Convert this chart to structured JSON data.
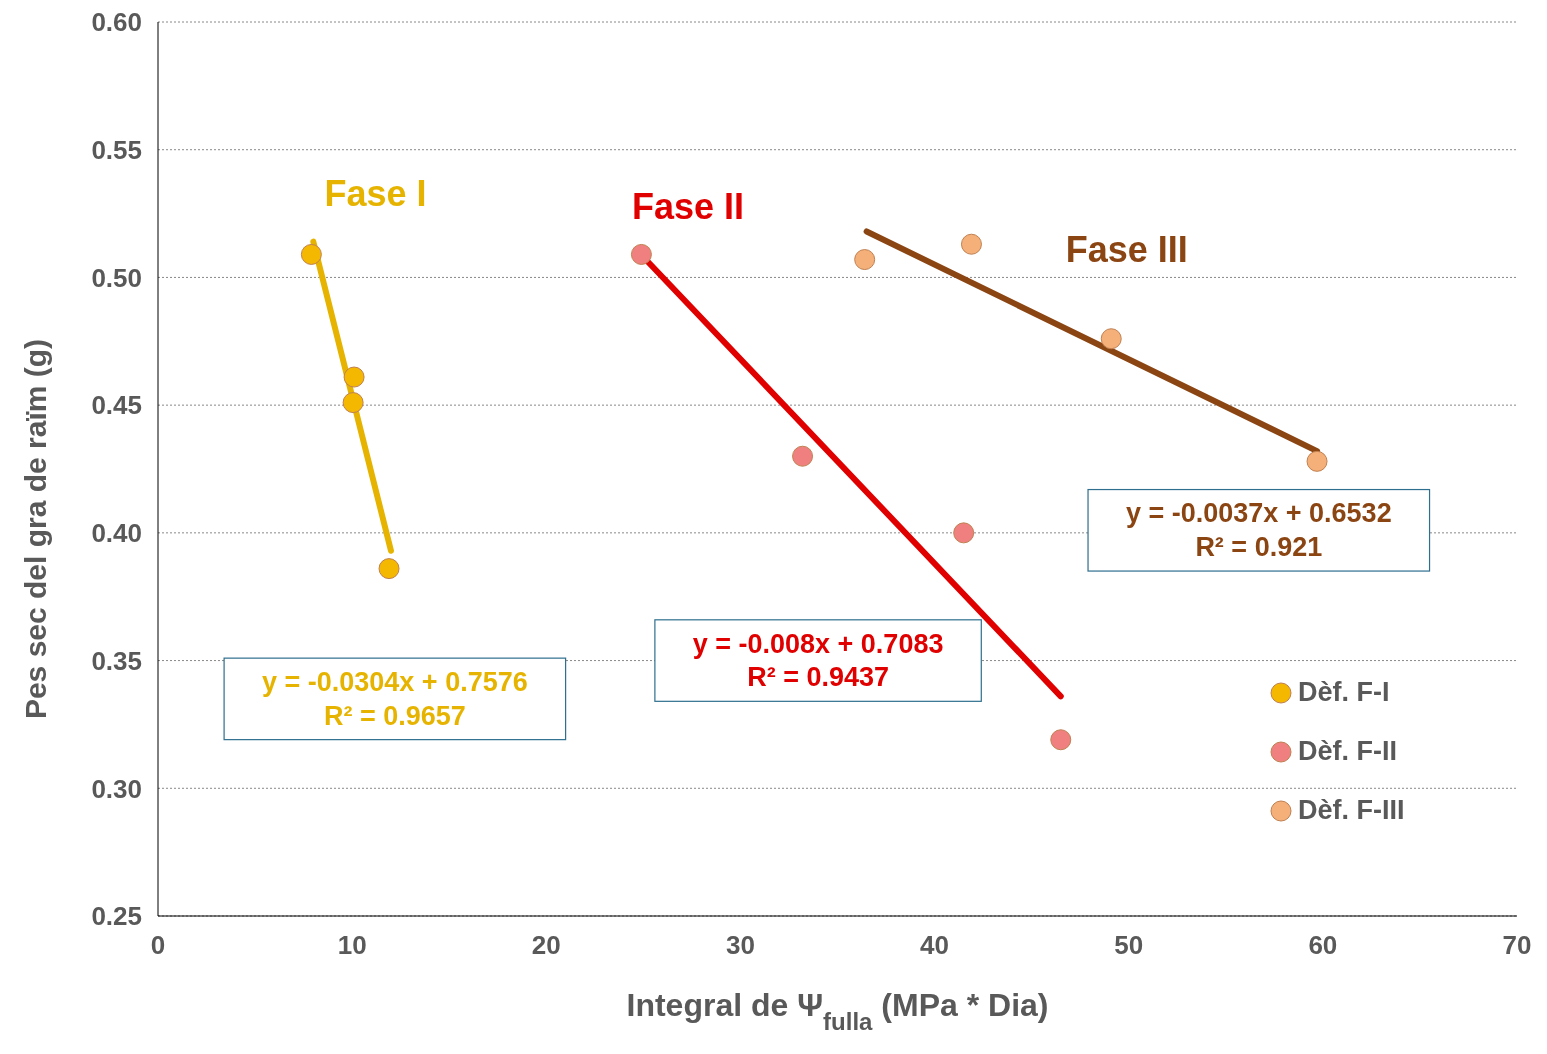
{
  "chart_data": {
    "type": "scatter",
    "xlabel": "Integral de Ψ$_{fulla}$ (MPa * Dia)",
    "ylabel": "Pes sec del gra de raïm (g)",
    "xlim": [
      0,
      70
    ],
    "xticks": [
      0,
      10,
      20,
      30,
      40,
      50,
      60,
      70
    ],
    "ylim": [
      0.25,
      0.6
    ],
    "yticks": [
      0.25,
      {
        "value": 0.3,
        "label": "0.30"
      },
      0.35,
      {
        "value": 0.4,
        "label": "0.40"
      },
      0.45,
      {
        "value": 0.5,
        "label": "0.50"
      },
      0.55,
      {
        "value": 0.6,
        "label": "0.60"
      }
    ],
    "grid": "y",
    "legend": "right",
    "series": [
      {
        "name": "Dèf. F-I",
        "color": "#f5b800",
        "marker": "circle",
        "x": [
          7.9,
          10.1,
          10.05,
          11.9
        ],
        "values": [
          0.509,
          0.461,
          0.451,
          0.386
        ]
      },
      {
        "name": "Dèf. F-II",
        "color": "#f08080",
        "marker": "circle",
        "x": [
          24.9,
          33.2,
          41.5,
          46.5
        ],
        "values": [
          0.509,
          0.43,
          0.4,
          0.319
        ]
      },
      {
        "name": "Dèf. F-III",
        "color": "#f5b07a",
        "marker": "circle",
        "x": [
          36.4,
          41.9,
          49.1,
          59.7
        ],
        "values": [
          0.507,
          0.513,
          0.476,
          0.428
        ]
      },
      {
        "type": "line",
        "color": "#e6b400",
        "marker": "none",
        "x": [
          8,
          12
        ],
        "values": [
          0.514,
          0.393
        ]
      },
      {
        "type": "line",
        "color": "#e00000",
        "marker": "none",
        "x": [
          25,
          46.5
        ],
        "values": [
          0.508,
          0.336
        ]
      },
      {
        "type": "line",
        "color": "#8b4513",
        "marker": "none",
        "x": [
          36.5,
          59.7
        ],
        "values": [
          0.518,
          0.432
        ]
      }
    ],
    "annotations": [
      "Fase I",
      "Fase II",
      "Fase III",
      "y = -0.0304x + 0.7576\nR² = 0.9657",
      "y = -0.008x + 0.7083\nR² = 0.9437",
      "y = -0.0037x + 0.6532\nR² = 0.921"
    ]
  }
}
